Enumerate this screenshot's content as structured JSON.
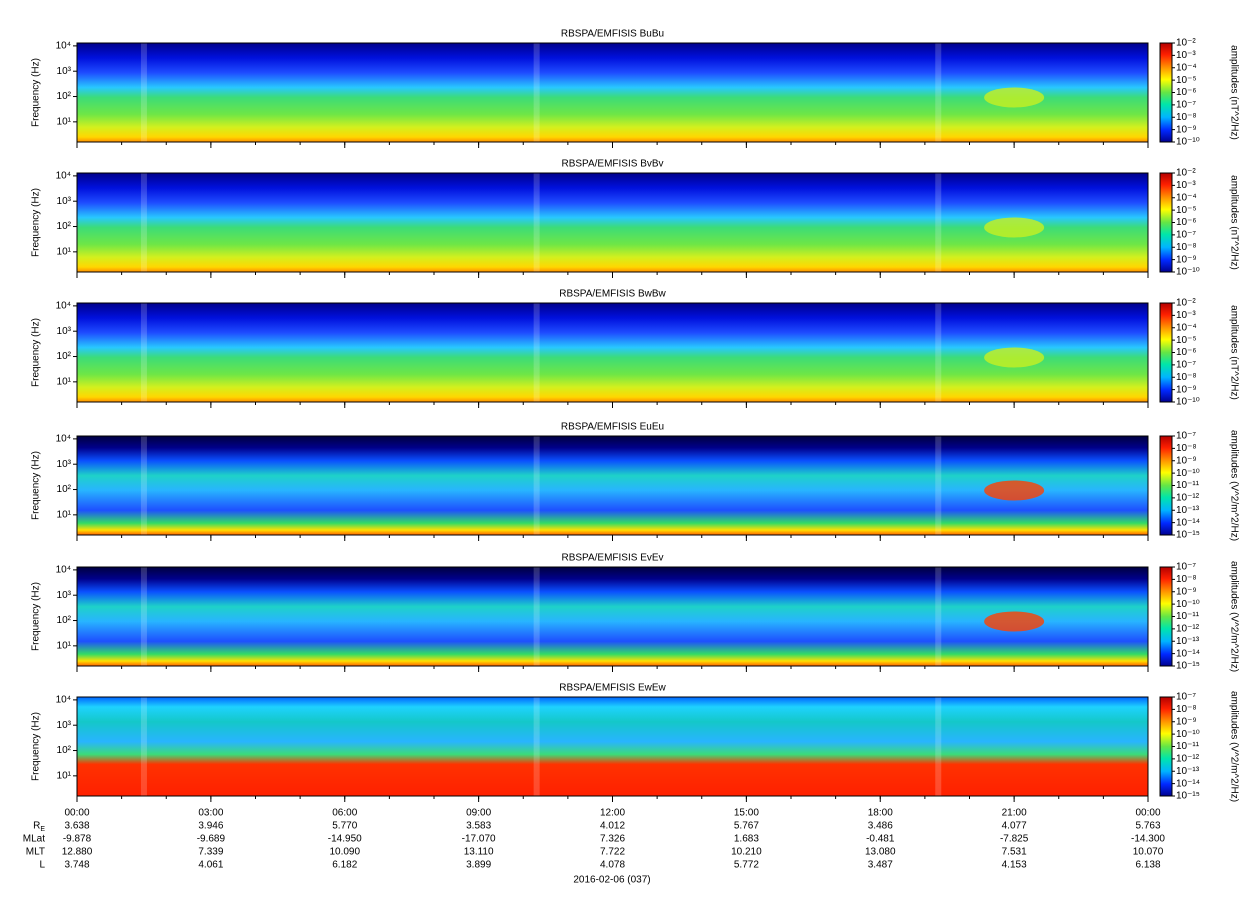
{
  "chart_data": [
    {
      "type": "spectrogram",
      "title": "RBSPA/EMFISIS  BuBu",
      "y_label": "Frequency (Hz)",
      "log_scale": true,
      "ylim": [
        1.6,
        13000
      ],
      "yticks": [
        {
          "value": 10,
          "label": "10¹"
        },
        {
          "value": 100,
          "label": "10²"
        },
        {
          "value": 1000,
          "label": "10³"
        },
        {
          "value": 10000,
          "label": "10⁴"
        }
      ],
      "colorbar_label": "amplitudes (nT^2/Hz)",
      "clim": [
        1e-10,
        0.01
      ],
      "cticks": [
        {
          "value": 0.01,
          "label": "10⁻²"
        },
        {
          "value": 0.001,
          "label": "10⁻³"
        },
        {
          "value": 0.0001,
          "label": "10⁻⁴"
        },
        {
          "value": 1e-05,
          "label": "10⁻⁵"
        },
        {
          "value": 1e-06,
          "label": "10⁻⁶"
        },
        {
          "value": 1e-07,
          "label": "10⁻⁷"
        },
        {
          "value": 1e-08,
          "label": "10⁻⁸"
        },
        {
          "value": 1e-09,
          "label": "10⁻⁹"
        },
        {
          "value": 1e-10,
          "label": "10⁻¹⁰"
        }
      ]
    },
    {
      "type": "spectrogram",
      "title": "RBSPA/EMFISIS  BvBv",
      "y_label": "Frequency (Hz)",
      "log_scale": true,
      "ylim": [
        1.6,
        13000
      ],
      "yticks": [
        {
          "value": 10,
          "label": "10¹"
        },
        {
          "value": 100,
          "label": "10²"
        },
        {
          "value": 1000,
          "label": "10³"
        },
        {
          "value": 10000,
          "label": "10⁴"
        }
      ],
      "colorbar_label": "amplitudes (nT^2/Hz)",
      "clim": [
        1e-10,
        0.01
      ],
      "cticks": [
        {
          "value": 0.01,
          "label": "10⁻²"
        },
        {
          "value": 0.001,
          "label": "10⁻³"
        },
        {
          "value": 0.0001,
          "label": "10⁻⁴"
        },
        {
          "value": 1e-05,
          "label": "10⁻⁵"
        },
        {
          "value": 1e-06,
          "label": "10⁻⁶"
        },
        {
          "value": 1e-07,
          "label": "10⁻⁷"
        },
        {
          "value": 1e-08,
          "label": "10⁻⁸"
        },
        {
          "value": 1e-09,
          "label": "10⁻⁹"
        },
        {
          "value": 1e-10,
          "label": "10⁻¹⁰"
        }
      ]
    },
    {
      "type": "spectrogram",
      "title": "RBSPA/EMFISIS  BwBw",
      "y_label": "Frequency (Hz)",
      "log_scale": true,
      "ylim": [
        1.6,
        13000
      ],
      "yticks": [
        {
          "value": 10,
          "label": "10¹"
        },
        {
          "value": 100,
          "label": "10²"
        },
        {
          "value": 1000,
          "label": "10³"
        },
        {
          "value": 10000,
          "label": "10⁴"
        }
      ],
      "colorbar_label": "amplitudes (nT^2/Hz)",
      "clim": [
        1e-10,
        0.01
      ],
      "cticks": [
        {
          "value": 0.01,
          "label": "10⁻²"
        },
        {
          "value": 0.001,
          "label": "10⁻³"
        },
        {
          "value": 0.0001,
          "label": "10⁻⁴"
        },
        {
          "value": 1e-05,
          "label": "10⁻⁵"
        },
        {
          "value": 1e-06,
          "label": "10⁻⁶"
        },
        {
          "value": 1e-07,
          "label": "10⁻⁷"
        },
        {
          "value": 1e-08,
          "label": "10⁻⁸"
        },
        {
          "value": 1e-09,
          "label": "10⁻⁹"
        },
        {
          "value": 1e-10,
          "label": "10⁻¹⁰"
        }
      ]
    },
    {
      "type": "spectrogram",
      "title": "RBSPA/EMFISIS  EuEu",
      "y_label": "Frequency (Hz)",
      "log_scale": true,
      "ylim": [
        1.6,
        13000
      ],
      "yticks": [
        {
          "value": 10,
          "label": "10¹"
        },
        {
          "value": 100,
          "label": "10²"
        },
        {
          "value": 1000,
          "label": "10³"
        },
        {
          "value": 10000,
          "label": "10⁴"
        }
      ],
      "colorbar_label": "amplitudes (V^2/m^2/Hz)",
      "clim": [
        1e-15,
        1e-07
      ],
      "cticks": [
        {
          "value": 1e-07,
          "label": "10⁻⁷"
        },
        {
          "value": 1e-08,
          "label": "10⁻⁸"
        },
        {
          "value": 1e-09,
          "label": "10⁻⁹"
        },
        {
          "value": 1e-10,
          "label": "10⁻¹⁰"
        },
        {
          "value": 1e-11,
          "label": "10⁻¹¹"
        },
        {
          "value": 1e-12,
          "label": "10⁻¹²"
        },
        {
          "value": 1e-13,
          "label": "10⁻¹³"
        },
        {
          "value": 1e-14,
          "label": "10⁻¹⁴"
        },
        {
          "value": 1e-15,
          "label": "10⁻¹⁵"
        }
      ]
    },
    {
      "type": "spectrogram",
      "title": "RBSPA/EMFISIS  EvEv",
      "y_label": "Frequency (Hz)",
      "log_scale": true,
      "ylim": [
        1.6,
        13000
      ],
      "yticks": [
        {
          "value": 10,
          "label": "10¹"
        },
        {
          "value": 100,
          "label": "10²"
        },
        {
          "value": 1000,
          "label": "10³"
        },
        {
          "value": 10000,
          "label": "10⁴"
        }
      ],
      "colorbar_label": "amplitudes (V^2/m^2/Hz)",
      "clim": [
        1e-15,
        1e-07
      ],
      "cticks": [
        {
          "value": 1e-07,
          "label": "10⁻⁷"
        },
        {
          "value": 1e-08,
          "label": "10⁻⁸"
        },
        {
          "value": 1e-09,
          "label": "10⁻⁹"
        },
        {
          "value": 1e-10,
          "label": "10⁻¹⁰"
        },
        {
          "value": 1e-11,
          "label": "10⁻¹¹"
        },
        {
          "value": 1e-12,
          "label": "10⁻¹²"
        },
        {
          "value": 1e-13,
          "label": "10⁻¹³"
        },
        {
          "value": 1e-14,
          "label": "10⁻¹⁴"
        },
        {
          "value": 1e-15,
          "label": "10⁻¹⁵"
        }
      ]
    },
    {
      "type": "spectrogram",
      "title": "RBSPA/EMFISIS  EwEw",
      "y_label": "Frequency (Hz)",
      "log_scale": true,
      "ylim": [
        1.6,
        13000
      ],
      "yticks": [
        {
          "value": 10,
          "label": "10¹"
        },
        {
          "value": 100,
          "label": "10²"
        },
        {
          "value": 1000,
          "label": "10³"
        },
        {
          "value": 10000,
          "label": "10⁴"
        }
      ],
      "colorbar_label": "amplitudes (V^2/m^2/Hz)",
      "clim": [
        1e-15,
        1e-07
      ],
      "cticks": [
        {
          "value": 1e-07,
          "label": "10⁻⁷"
        },
        {
          "value": 1e-08,
          "label": "10⁻⁸"
        },
        {
          "value": 1e-09,
          "label": "10⁻⁹"
        },
        {
          "value": 1e-10,
          "label": "10⁻¹⁰"
        },
        {
          "value": 1e-11,
          "label": "10⁻¹¹"
        },
        {
          "value": 1e-12,
          "label": "10⁻¹²"
        },
        {
          "value": 1e-13,
          "label": "10⁻¹³"
        },
        {
          "value": 1e-14,
          "label": "10⁻¹⁴"
        },
        {
          "value": 1e-15,
          "label": "10⁻¹⁵"
        }
      ]
    }
  ],
  "time_axis": {
    "xlim": [
      0,
      24
    ],
    "xticks": [
      {
        "value": 0,
        "label": "00:00"
      },
      {
        "value": 3,
        "label": "03:00"
      },
      {
        "value": 6,
        "label": "06:00"
      },
      {
        "value": 9,
        "label": "09:00"
      },
      {
        "value": 12,
        "label": "12:00"
      },
      {
        "value": 15,
        "label": "15:00"
      },
      {
        "value": 18,
        "label": "18:00"
      },
      {
        "value": 21,
        "label": "21:00"
      },
      {
        "value": 24,
        "label": "00:00"
      }
    ],
    "date_label": "2016-02-06 (037)"
  },
  "ephemeris": {
    "labels": [
      "RE",
      "MLat",
      "MLT",
      "L"
    ],
    "rows": [
      [
        "3.638",
        "3.946",
        "5.770",
        "3.583",
        "4.012",
        "5.767",
        "3.486",
        "4.077",
        "5.763"
      ],
      [
        "-9.878",
        "-9.689",
        "-14.950",
        "-17.070",
        "7.326",
        "1.683",
        "-0.481",
        "-7.825",
        "-14.300"
      ],
      [
        "12.880",
        "7.339",
        "10.090",
        "13.110",
        "7.722",
        "10.210",
        "13.080",
        "7.531",
        "10.070"
      ],
      [
        "3.748",
        "4.061",
        "6.182",
        "3.899",
        "4.078",
        "5.772",
        "3.487",
        "4.153",
        "6.138"
      ]
    ]
  }
}
